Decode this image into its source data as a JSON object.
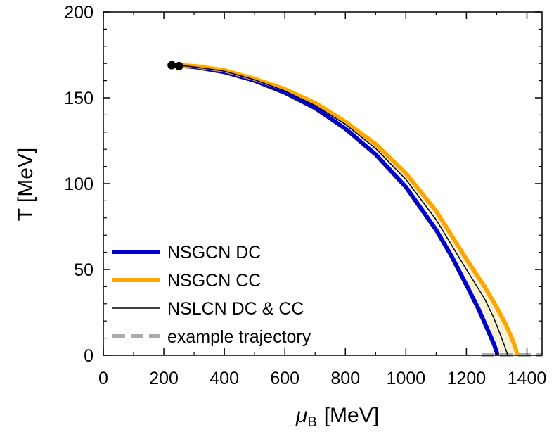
{
  "chart_data": {
    "type": "line",
    "xlabel_symbol": "μ",
    "xlabel_subscript": "B",
    "xlabel_unit": "[MeV]",
    "ylabel": "T [MeV]",
    "xlim": [
      0,
      1450
    ],
    "ylim": [
      0,
      200
    ],
    "x_ticks": [
      0,
      200,
      400,
      600,
      800,
      1000,
      1200,
      1400
    ],
    "y_ticks": [
      0,
      50,
      100,
      150,
      200
    ],
    "x_tick_labels": [
      "0",
      "200",
      "400",
      "600",
      "800",
      "1000",
      "1200",
      "1400"
    ],
    "y_tick_labels": [
      "0",
      "50",
      "100",
      "150",
      "200"
    ],
    "grid": false,
    "legend_position": "bottom-left",
    "series": [
      {
        "name": "NSGCN DC",
        "color": "#0000cc",
        "style": "solid-thick",
        "x": [
          230,
          300,
          400,
          500,
          600,
          700,
          800,
          900,
          1000,
          1100,
          1150,
          1200,
          1240,
          1270,
          1290,
          1300,
          1302
        ],
        "y": [
          169,
          168,
          165,
          160,
          153,
          144,
          132,
          117,
          98,
          73,
          58,
          41,
          27,
          15,
          7,
          2,
          0
        ]
      },
      {
        "name": "NSGCN CC",
        "color": "#ffa500",
        "style": "solid-thick",
        "x": [
          248,
          300,
          400,
          500,
          600,
          700,
          800,
          900,
          1000,
          1100,
          1200,
          1260,
          1300,
          1330,
          1350,
          1363,
          1368
        ],
        "y": [
          169,
          168.5,
          166,
          161,
          155,
          147,
          136,
          123,
          106,
          84,
          56,
          40,
          28,
          18,
          10,
          4,
          0
        ]
      },
      {
        "name": "NSLCN DC & CC",
        "color": "#000000",
        "style": "solid-thin",
        "x": [
          248,
          300,
          400,
          500,
          600,
          700,
          800,
          900,
          1000,
          1100,
          1200,
          1260,
          1290,
          1310,
          1325,
          1333,
          1336
        ],
        "y": [
          169,
          168,
          165.5,
          160.5,
          154,
          145.5,
          134.5,
          120.5,
          102.5,
          79,
          50,
          33,
          22,
          13,
          6,
          2,
          0
        ]
      },
      {
        "name": "example trajectory",
        "color": "#aaaaaa",
        "style": "dashed",
        "x": [
          1250,
          1450
        ],
        "y": [
          0,
          0
        ]
      }
    ],
    "points": [
      {
        "x": 226,
        "y": 169
      },
      {
        "x": 250,
        "y": 168.5
      }
    ]
  }
}
